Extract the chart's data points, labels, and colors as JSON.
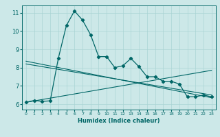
{
  "xlabel": "Humidex (Indice chaleur)",
  "ylabel": "",
  "xlim": [
    -0.5,
    23.5
  ],
  "ylim": [
    5.7,
    11.4
  ],
  "xticks": [
    0,
    1,
    2,
    3,
    4,
    5,
    6,
    7,
    8,
    9,
    10,
    11,
    12,
    13,
    14,
    15,
    16,
    17,
    18,
    19,
    20,
    21,
    22,
    23
  ],
  "yticks": [
    6,
    7,
    8,
    9,
    10,
    11
  ],
  "bg_color": "#cce8e8",
  "line_color": "#006666",
  "grid_color": "#aad4d4",
  "main_x": [
    0,
    1,
    2,
    3,
    4,
    5,
    6,
    7,
    8,
    9,
    10,
    11,
    12,
    13,
    14,
    15,
    16,
    17,
    18,
    19,
    20,
    21,
    22,
    23
  ],
  "main_y": [
    6.1,
    6.2,
    6.15,
    6.18,
    8.5,
    10.3,
    11.1,
    10.6,
    9.8,
    8.6,
    8.6,
    8.0,
    8.1,
    8.5,
    8.05,
    7.5,
    7.5,
    7.25,
    7.25,
    7.1,
    6.4,
    6.4,
    6.5,
    6.4
  ],
  "trend1_x": [
    0,
    23
  ],
  "trend1_y": [
    8.35,
    6.35
  ],
  "trend2_x": [
    0,
    23
  ],
  "trend2_y": [
    8.2,
    6.5
  ],
  "trend3_x": [
    0,
    23
  ],
  "trend3_y": [
    6.1,
    7.85
  ]
}
